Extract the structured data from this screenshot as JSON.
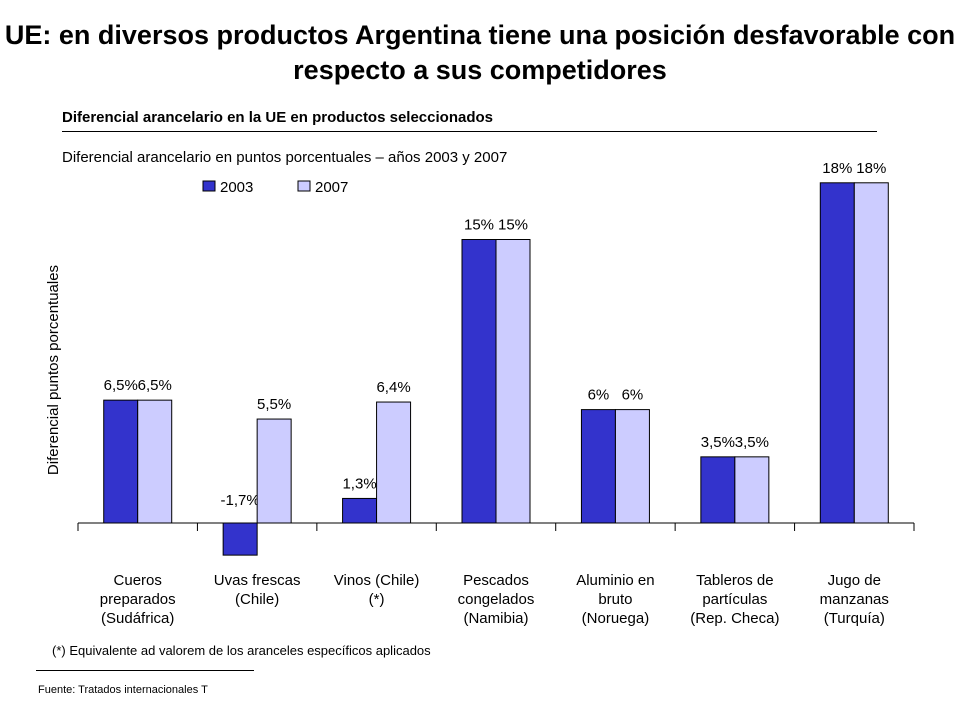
{
  "title": "UE: en diversos productos Argentina tiene una posición desfavorable con respecto a sus competidores",
  "subtitle": "Diferencial arancelario en la UE en productos seleccionados",
  "description": "Diferencial arancelario en puntos porcentuales – años 2003 y 2007",
  "footnote": "(*) Equivalente ad valorem de los aranceles específicos aplicados",
  "source": "Fuente: Tratados internacionales T",
  "colors": {
    "series_2003": "#3333cc",
    "series_2007": "#ccccff"
  },
  "chart_data": {
    "type": "bar",
    "ylabel": "Diferencial puntos porcentuales",
    "ylim": [
      -2.5,
      19.5
    ],
    "grid": false,
    "legend_position": "top-left",
    "categories": [
      [
        "Cueros",
        "preparados",
        "(Sudáfrica)"
      ],
      [
        "Uvas frescas",
        "(Chile)"
      ],
      [
        "Vinos (Chile)",
        "(*)"
      ],
      [
        "Pescados",
        "congelados",
        "(Namibia)"
      ],
      [
        "Aluminio en",
        "bruto",
        "(Noruega)"
      ],
      [
        "Tableros de",
        "partículas",
        "(Rep. Checa)"
      ],
      [
        "Jugo de",
        "manzanas",
        "(Turquía)"
      ]
    ],
    "series": [
      {
        "name": "2003",
        "values": [
          6.5,
          -1.7,
          1.3,
          15,
          6,
          3.5,
          18
        ],
        "labels": [
          "6,5%",
          "-1,7%",
          "1,3%",
          "15%",
          "6%",
          "3,5%",
          "18%"
        ]
      },
      {
        "name": "2007",
        "values": [
          6.5,
          5.5,
          6.4,
          15,
          6,
          3.5,
          18
        ],
        "labels": [
          "6,5%",
          "5,5%",
          "6,4%",
          "15%",
          "6%",
          "3,5%",
          "18%"
        ]
      }
    ]
  }
}
